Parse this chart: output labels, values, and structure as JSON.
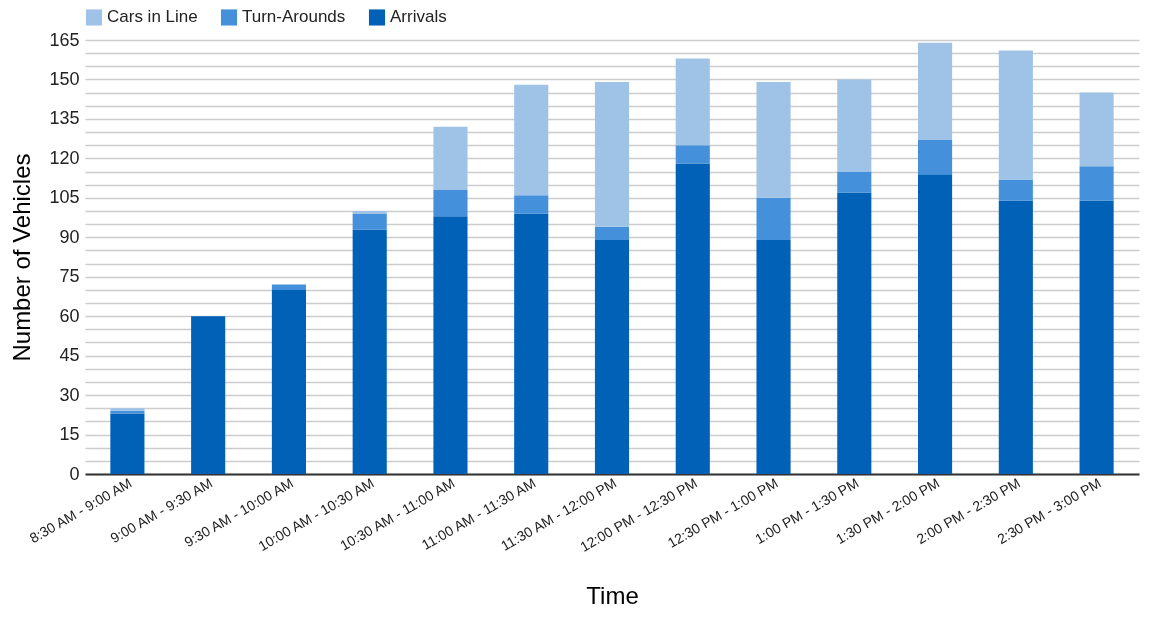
{
  "chart_data": {
    "type": "bar",
    "stacked": true,
    "xlabel": "Time",
    "ylabel": "Number of Vehicles",
    "categories": [
      "8:30 AM - 9:00 AM",
      "9:00 AM - 9:30 AM",
      "9:30 AM - 10:00 AM",
      "10:00 AM - 10:30 AM",
      "10:30 AM - 11:00 AM",
      "11:00 AM - 11:30 AM",
      "11:30 AM - 12:00 PM",
      "12:00 PM - 12:30 PM",
      "12:30 PM - 1:00 PM",
      "1:00 PM - 1:30 PM",
      "1:30 PM - 2:00 PM",
      "2:00 PM - 2:30 PM",
      "2:30 PM - 3:00 PM"
    ],
    "series": [
      {
        "name": "Arrivals",
        "color": "#0061b7",
        "values": [
          23,
          60,
          70,
          93,
          98,
          99,
          89,
          118,
          89,
          107,
          114,
          104,
          104
        ]
      },
      {
        "name": "Turn-Arounds",
        "color": "#4590db",
        "values": [
          1,
          0,
          2,
          6,
          10,
          7,
          5,
          7,
          16,
          8,
          13,
          8,
          13
        ]
      },
      {
        "name": "Cars in Line",
        "color": "#9fc3e7",
        "values": [
          1,
          0,
          0,
          1,
          24,
          42,
          55,
          33,
          44,
          35,
          37,
          49,
          28
        ]
      }
    ],
    "ylim": [
      0,
      165
    ],
    "yticks": [
      0,
      {
        "value": 5,
        "label": null
      },
      {
        "value": 10,
        "label": null
      },
      15,
      {
        "value": 20,
        "label": null
      },
      {
        "value": 25,
        "label": null
      },
      30,
      {
        "value": 35,
        "label": null
      },
      {
        "value": 40,
        "label": null
      },
      45,
      {
        "value": 50,
        "label": null
      },
      {
        "value": 55,
        "label": null
      },
      60,
      {
        "value": 65,
        "label": null
      },
      {
        "value": 70,
        "label": null
      },
      75,
      {
        "value": 80,
        "label": null
      },
      {
        "value": 85,
        "label": null
      },
      90,
      {
        "value": 95,
        "label": null
      },
      {
        "value": 100,
        "label": null
      },
      105,
      {
        "value": 110,
        "label": null
      },
      {
        "value": 115,
        "label": null
      },
      120,
      {
        "value": 125,
        "label": null
      },
      {
        "value": 130,
        "label": null
      },
      135,
      {
        "value": 140,
        "label": null
      },
      {
        "value": 145,
        "label": null
      },
      150,
      {
        "value": 155,
        "label": null
      },
      {
        "value": 160,
        "label": null
      },
      165
    ],
    "grid": true,
    "legend": "top"
  }
}
